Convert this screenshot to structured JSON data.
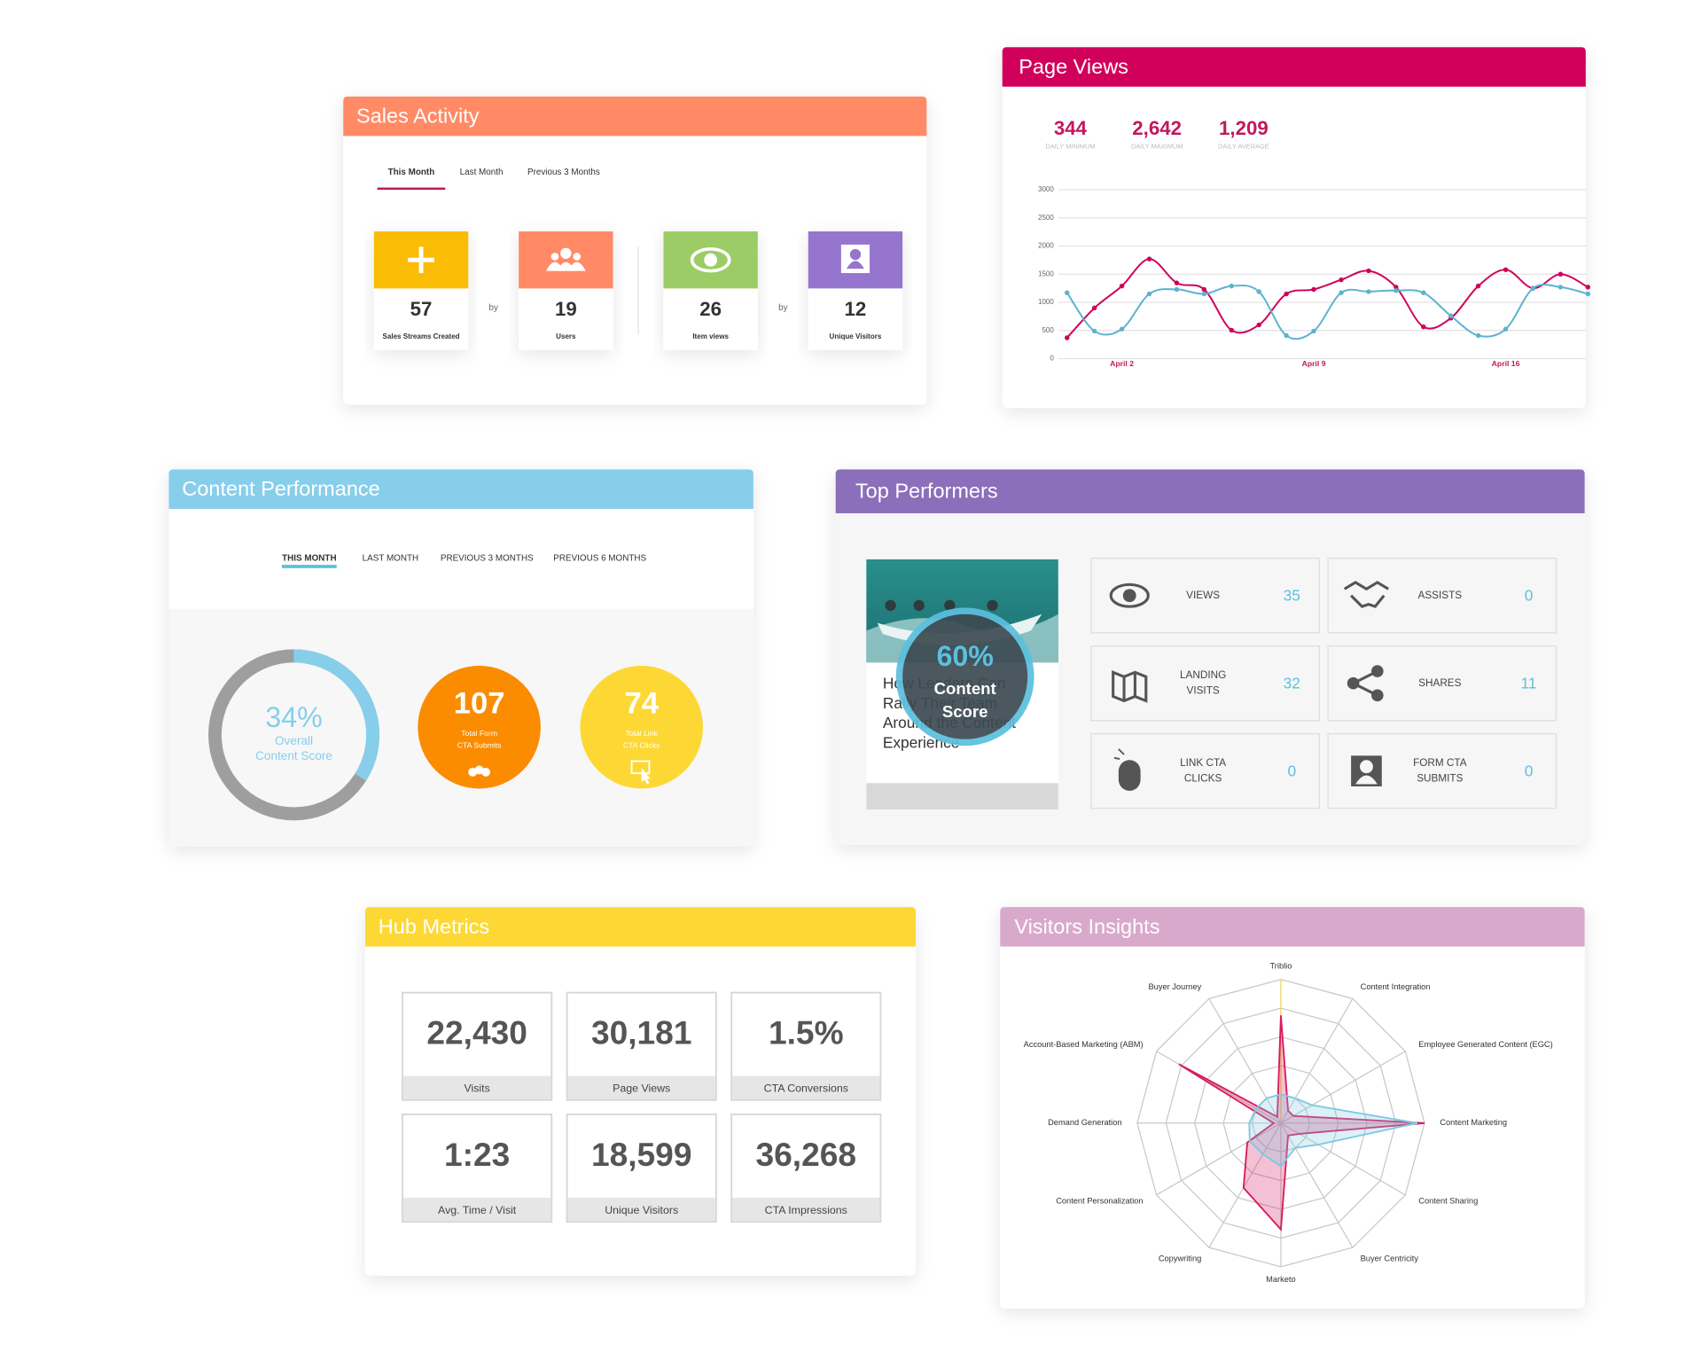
{
  "sales_activity": {
    "title": "Sales Activity",
    "tabs": [
      "This Month",
      "Last Month",
      "Previous 3 Months"
    ],
    "connector": "by",
    "cards": [
      {
        "value": "57",
        "label": "Sales Streams Created"
      },
      {
        "value": "19",
        "label": "Users"
      },
      {
        "value": "26",
        "label": "Item views"
      },
      {
        "value": "12",
        "label": "Unique Visitors"
      }
    ]
  },
  "page_views": {
    "title": "Page Views",
    "stats": [
      {
        "value": "344",
        "label": "DAILY MINIMUM"
      },
      {
        "value": "2,642",
        "label": "DAILY MAXIMUM"
      },
      {
        "value": "1,209",
        "label": "DAILY AVERAGE"
      }
    ]
  },
  "content_performance": {
    "title": "Content Performance",
    "tabs": [
      "THIS MONTH",
      "LAST MONTH",
      "PREVIOUS 3 MONTHS",
      "PREVIOUS 6 MONTHS"
    ],
    "metrics": [
      {
        "value": "107",
        "label_lines": [
          "Total Form",
          "CTA Submits"
        ]
      },
      {
        "value": "74",
        "label_lines": [
          "Total Link",
          "CTA Clicks"
        ]
      }
    ]
  },
  "top_performers": {
    "title": "Top Performers",
    "article": {
      "title_lines": [
        "How Leaders Can",
        "Rally Their Team",
        "Around the Content",
        "Experience"
      ],
      "score": "60%",
      "score_label_lines": [
        "Content",
        "Score"
      ]
    },
    "metrics": [
      {
        "label_lines": [
          "VIEWS"
        ],
        "value": "35"
      },
      {
        "label_lines": [
          "ASSISTS"
        ],
        "value": "0"
      },
      {
        "label_lines": [
          "LANDING",
          "VISITS"
        ],
        "value": "32"
      },
      {
        "label_lines": [
          "SHARES"
        ],
        "value": "11"
      },
      {
        "label_lines": [
          "LINK CTA",
          "CLICKS"
        ],
        "value": "0"
      },
      {
        "label_lines": [
          "FORM CTA",
          "SUBMITS"
        ],
        "value": "0"
      }
    ]
  },
  "hub_metrics": {
    "title": "Hub Metrics",
    "metrics": [
      {
        "value": "22,430",
        "label": "Visits"
      },
      {
        "value": "30,181",
        "label": "Page Views"
      },
      {
        "value": "1.5%",
        "label": "CTA Conversions"
      },
      {
        "value": "1:23",
        "label": "Avg. Time / Visit"
      },
      {
        "value": "18,599",
        "label": "Unique Visitors"
      },
      {
        "value": "36,268",
        "label": "CTA Impressions"
      }
    ]
  },
  "visitors_insights": {
    "title": "Visitors Insights"
  },
  "chart_data": [
    {
      "type": "line",
      "categories": [
        null,
        null,
        "April 2",
        null,
        null,
        null,
        null,
        null,
        null,
        "April 9",
        null,
        null,
        null,
        null,
        null,
        null,
        "April 16",
        null,
        null,
        null
      ],
      "series": [
        {
          "color": "#d1005a",
          "values": [
            370,
            900,
            1290,
            1770,
            1345,
            1230,
            505,
            600,
            1150,
            1230,
            1400,
            1560,
            1270,
            565,
            720,
            1290,
            1580,
            1250,
            1500,
            1270
          ]
        },
        {
          "color": "#5bb3cf",
          "values": [
            1170,
            490,
            525,
            1150,
            1230,
            1150,
            1290,
            1190,
            410,
            490,
            1170,
            1190,
            1210,
            1170,
            760,
            410,
            525,
            1250,
            1270,
            1150
          ]
        }
      ],
      "ylim": [
        0,
        3000
      ],
      "yticks": [
        0,
        500,
        1000,
        1500,
        2000,
        2500,
        3000
      ],
      "grid": true
    },
    {
      "type": "radar",
      "categories": [
        "Triblio",
        "Content Integration",
        "Employee Generated Content (EGC)",
        "Content Marketing",
        "Content Sharing",
        "Buyer Centricity",
        "Marketo",
        "Copywriting",
        "Content Personalization",
        "Demand Generation",
        "Account-Based Marketing (ABM)",
        "Buyer Journey"
      ],
      "series": [
        {
          "color": "#d81b60",
          "values": [
            75,
            10,
            10,
            100,
            15,
            10,
            74,
            52,
            27,
            5,
            82,
            5
          ]
        },
        {
          "color": "#7ec8e3",
          "values": [
            20,
            20,
            25,
            95,
            30,
            20,
            30,
            25,
            25,
            22,
            20,
            20
          ]
        }
      ],
      "rlim": [
        0,
        100
      ],
      "rticks": [
        20,
        40,
        60,
        80,
        100
      ]
    },
    {
      "type": "donut",
      "values": [
        34
      ],
      "value_labels": [
        "34%"
      ],
      "label_lines": [
        "Overall",
        "Content Score"
      ],
      "color": "#87ceeb"
    }
  ]
}
